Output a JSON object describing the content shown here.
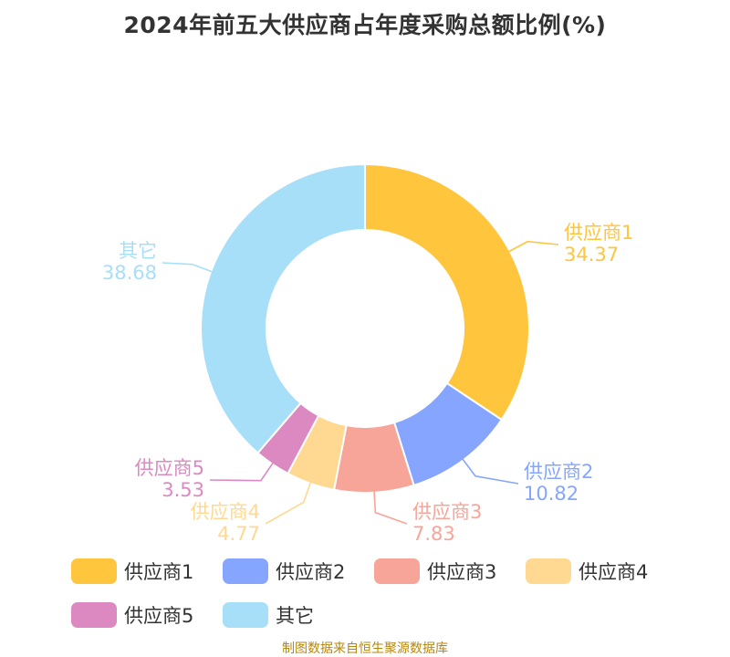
{
  "title": "2024年前五大供应商占年度采购总额比例(%)",
  "source": "制图数据来自恒生聚源数据库",
  "chart_data": {
    "type": "pie",
    "variant": "donut",
    "title": "2024年前五大供应商占年度采购总额比例(%)",
    "slices": [
      {
        "name": "供应商1",
        "value": 34.37,
        "value_label": "34.37",
        "color": "#FFC53D"
      },
      {
        "name": "供应商2",
        "value": 10.82,
        "value_label": "10.82",
        "color": "#85A5FF"
      },
      {
        "name": "供应商3",
        "value": 7.83,
        "value_label": "7.83",
        "color": "#F8A599"
      },
      {
        "name": "供应商4",
        "value": 4.77,
        "value_label": "4.77",
        "color": "#FFD991"
      },
      {
        "name": "供应商5",
        "value": 3.53,
        "value_label": "3.53",
        "color": "#DC89C1"
      },
      {
        "name": "其它",
        "value": 38.68,
        "value_label": "38.68",
        "color": "#A8DFF8"
      }
    ],
    "legend_position": "bottom"
  }
}
